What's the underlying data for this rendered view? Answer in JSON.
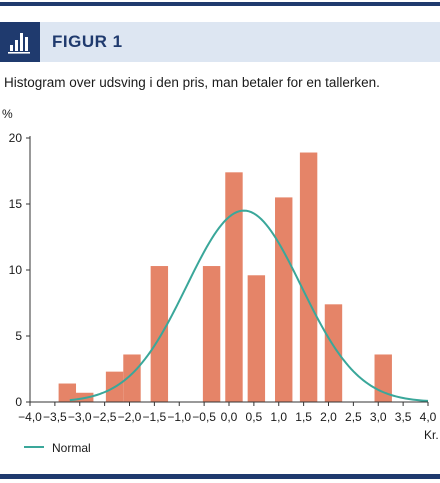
{
  "header": {
    "label": "FIGUR 1",
    "icon": "bar-chart-icon",
    "colors": {
      "band": "#dde6f2",
      "accent": "#1f3a6e"
    }
  },
  "caption": "Histogram over udsving i den pris, man betaler for en tallerken.",
  "chart_data": {
    "type": "bar",
    "title": "",
    "ylabel": "%",
    "xlabel": "Kr.",
    "ylim": [
      0,
      20
    ],
    "xlim": [
      -4.0,
      4.0
    ],
    "y_ticks": [
      0,
      5,
      10,
      15,
      20
    ],
    "x_ticks": [
      -4.0,
      -3.5,
      -3.0,
      -2.5,
      -2.0,
      -1.5,
      -1.0,
      -0.5,
      0.0,
      0.5,
      1.0,
      1.5,
      2.0,
      2.5,
      3.0,
      3.5,
      4.0
    ],
    "x_tick_labels": [
      "−4,0",
      "−3,5",
      "−3,0",
      "−2,5",
      "−2,0",
      "−1,5",
      "−1,0",
      "−0,5",
      "0,0",
      "0,5",
      "1,0",
      "1,5",
      "2,0",
      "2,5",
      "3,0",
      "3,5",
      "4,0"
    ],
    "bar_width": 0.35,
    "bars": [
      {
        "x": -3.25,
        "value": 1.4
      },
      {
        "x": -2.9,
        "value": 0.7
      },
      {
        "x": -2.3,
        "value": 2.3
      },
      {
        "x": -1.95,
        "value": 3.6
      },
      {
        "x": -1.4,
        "value": 10.3
      },
      {
        "x": -0.35,
        "value": 10.3
      },
      {
        "x": 0.1,
        "value": 17.4
      },
      {
        "x": 0.55,
        "value": 9.6
      },
      {
        "x": 1.1,
        "value": 15.5
      },
      {
        "x": 1.6,
        "value": 18.9
      },
      {
        "x": 2.1,
        "value": 7.4
      },
      {
        "x": 3.1,
        "value": 3.6
      }
    ],
    "normal": {
      "name": "Normal",
      "mean": 0.3,
      "sd": 1.15,
      "peak": 14.5
    },
    "colors": {
      "bar": "#e58468",
      "normal": "#3aa79a",
      "axis": "#333333"
    },
    "legend": "bottom-left",
    "grid": false
  }
}
